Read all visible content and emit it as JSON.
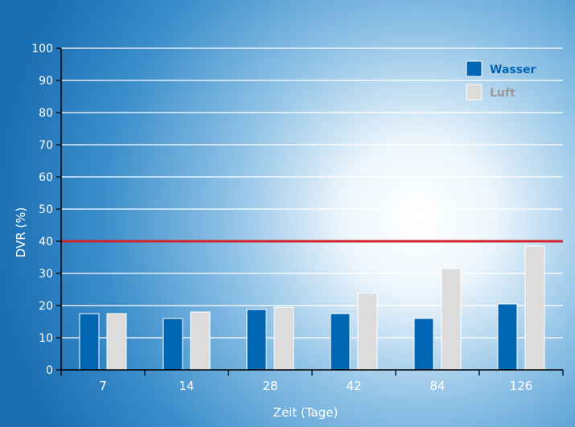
{
  "chart_data": {
    "type": "bar",
    "title": "",
    "xlabel": "Zeit (Tage)",
    "ylabel": "DVR (%)",
    "ylim": [
      0,
      100
    ],
    "yticks": [
      0,
      10,
      20,
      30,
      40,
      50,
      60,
      70,
      80,
      90,
      100
    ],
    "categories": [
      "7",
      "14",
      "28",
      "42",
      "84",
      "126"
    ],
    "series": [
      {
        "name": "Wasser",
        "color": "#0066b3",
        "values": [
          17.5,
          16,
          18.8,
          17.5,
          16,
          20.5
        ]
      },
      {
        "name": "Luft",
        "color": "#dcdcdc",
        "values": [
          17.5,
          18,
          19.5,
          23.8,
          31.5,
          38.5
        ]
      }
    ],
    "reference_line": {
      "value": 40,
      "color": "#d2232a"
    },
    "grid": true,
    "legend_position": "top-right",
    "colors": {
      "background_edge": "#1b6fb3",
      "axis_text": "#ffffff",
      "wasser_legend_text": "#0066b3",
      "luft_legend_text": "#9a9a9a"
    }
  }
}
